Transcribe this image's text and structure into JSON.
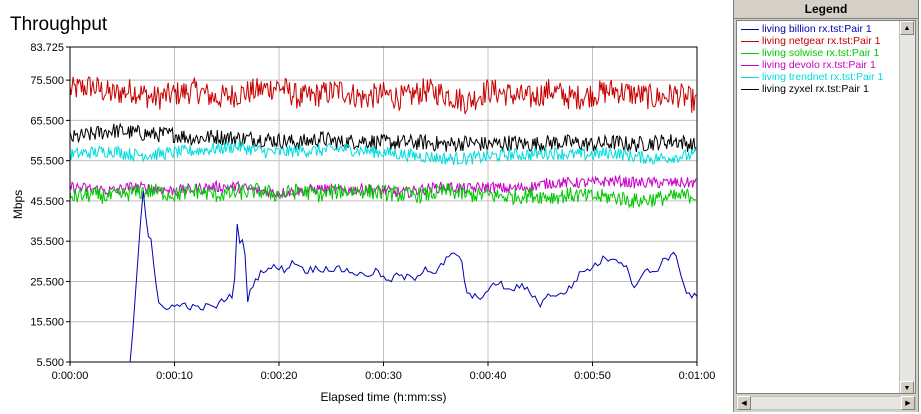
{
  "chart_data": {
    "type": "line",
    "title": "Throughput",
    "xlabel": "Elapsed time (h:mm:ss)",
    "ylabel": "Mbps",
    "xlim": [
      0,
      60
    ],
    "ylim": [
      5.5,
      83.725
    ],
    "grid": true,
    "legend_position": "right panel",
    "x_ticks": [
      0,
      10,
      20,
      30,
      40,
      50,
      60
    ],
    "x_tick_labels": [
      "0:00:00",
      "0:00:10",
      "0:00:20",
      "0:00:30",
      "0:00:40",
      "0:00:50",
      "0:01:00"
    ],
    "y_ticks": [
      5.5,
      15.5,
      25.5,
      35.5,
      45.5,
      55.5,
      65.5,
      75.5,
      83.725
    ],
    "y_tick_labels": [
      "5.500",
      "15.500",
      "25.500",
      "35.500",
      "45.500",
      "55.500",
      "65.500",
      "75.500",
      "83.725"
    ],
    "series": [
      {
        "name": "living billion rx.tst:Pair 1",
        "color": "#0000b4",
        "x": [
          0,
          5.8,
          6.8,
          7.0,
          7.2,
          7.5,
          7.8,
          8.1,
          8.5,
          9.0,
          9.5,
          10,
          11,
          12,
          13,
          14,
          15,
          15.7,
          16.0,
          16.3,
          16.6,
          17.0,
          17.5,
          18.5,
          19.5,
          20.5,
          21.5,
          22.5,
          23.5,
          25,
          26.5,
          28,
          29.5,
          30.5,
          31,
          32,
          33,
          34,
          35,
          36,
          37,
          37.5,
          38,
          39,
          40,
          41,
          42,
          43,
          44,
          45,
          46,
          47,
          48,
          49,
          50,
          51,
          52,
          53,
          54,
          55,
          56,
          57,
          58,
          59,
          60
        ],
        "y": [
          5.5,
          5.5,
          42,
          48,
          43,
          37,
          35.5,
          26,
          20,
          19,
          19.5,
          19.2,
          19.8,
          18.8,
          19.2,
          19.3,
          21.5,
          22.5,
          40.5,
          33,
          38.5,
          20.5,
          25,
          28.5,
          29,
          28.5,
          30.5,
          28.2,
          28.7,
          28.7,
          28.3,
          27,
          28,
          25,
          27,
          26.5,
          26.5,
          29,
          27.5,
          31,
          32.5,
          30,
          22,
          21.5,
          23,
          25.5,
          23,
          24.5,
          23,
          20,
          22.5,
          22,
          24.5,
          28,
          29,
          31,
          31.5,
          30,
          24.5,
          28,
          28,
          31.5,
          32,
          22.5,
          21.5
        ]
      },
      {
        "name": "living netgear rx.tst:Pair 1",
        "color": "#c80000",
        "x": [
          0,
          2,
          4,
          6,
          8,
          10,
          12,
          14,
          16,
          18,
          20,
          22,
          24,
          26,
          28,
          30,
          32,
          34,
          36,
          38,
          40,
          42,
          44,
          46,
          48,
          50,
          52,
          54,
          56,
          58,
          60
        ],
        "y": [
          73,
          74,
          72,
          73,
          71,
          72,
          73,
          71,
          72,
          73,
          74,
          71,
          72,
          73,
          71,
          72,
          71,
          73,
          72,
          70,
          73,
          72,
          71,
          73,
          71,
          72,
          73,
          72,
          71,
          72,
          70
        ]
      },
      {
        "name": "living solwise rx.tst:Pair 1",
        "color": "#00c800",
        "x": [
          0,
          2,
          4,
          6,
          8,
          10,
          12,
          14,
          16,
          18,
          20,
          22,
          24,
          26,
          28,
          30,
          32,
          34,
          36,
          38,
          40,
          42,
          44,
          46,
          48,
          50,
          52,
          54,
          56,
          58,
          60
        ],
        "y": [
          46.5,
          47,
          46.5,
          47.5,
          48,
          47,
          48,
          47,
          47.5,
          48,
          47,
          48,
          47,
          48,
          48,
          47.5,
          47,
          47,
          48,
          47,
          47,
          46.5,
          47,
          46.5,
          47,
          46.5,
          46.5,
          45.5,
          46,
          46.5,
          47
        ]
      },
      {
        "name": "living devolo rx.tst:Pair 1",
        "color": "#c800c8",
        "x": [
          0,
          2,
          4,
          6,
          8,
          10,
          12,
          14,
          16,
          18,
          20,
          22,
          24,
          26,
          28,
          30,
          32,
          34,
          36,
          38,
          40,
          42,
          44,
          46,
          48,
          50,
          52,
          54,
          56,
          58,
          60
        ],
        "y": [
          49,
          48.5,
          48,
          49,
          48.5,
          48,
          48.5,
          49,
          49,
          48,
          47.5,
          48,
          48.5,
          48,
          48.5,
          48,
          47.5,
          48.5,
          49,
          48.5,
          49,
          48.5,
          49,
          50,
          50,
          50,
          50.5,
          50,
          50,
          50,
          50
        ]
      },
      {
        "name": "living trendnet rx.tst:Pair 1",
        "color": "#00dcdc",
        "x": [
          0,
          2,
          4,
          6,
          8,
          10,
          12,
          14,
          16,
          18,
          20,
          22,
          24,
          26,
          28,
          30,
          32,
          34,
          36,
          38,
          40,
          42,
          44,
          46,
          48,
          50,
          52,
          54,
          56,
          58,
          60
        ],
        "y": [
          57,
          57.5,
          58,
          57,
          57,
          57.5,
          58,
          58.5,
          59,
          58,
          57.5,
          58,
          58,
          58.5,
          58,
          57.5,
          57,
          56.5,
          56,
          56,
          56.5,
          57,
          57,
          57.5,
          57,
          57,
          57.5,
          56.5,
          56,
          56.5,
          57
        ]
      },
      {
        "name": "living zyxel rx.tst:Pair 1",
        "color": "#000000",
        "x": [
          0,
          2,
          4,
          6,
          8,
          10,
          12,
          14,
          16,
          18,
          20,
          22,
          24,
          26,
          28,
          30,
          32,
          34,
          36,
          38,
          40,
          42,
          44,
          46,
          48,
          50,
          52,
          54,
          56,
          58,
          60
        ],
        "y": [
          61,
          62,
          63,
          62.5,
          62,
          62,
          61,
          61.5,
          61,
          61,
          60.5,
          60,
          61,
          60,
          60.5,
          60,
          60,
          60,
          59.5,
          60,
          59.5,
          60,
          59.5,
          60,
          60,
          59.5,
          60,
          59.5,
          60,
          60.5,
          59
        ]
      }
    ]
  },
  "legend": {
    "title": "Legend"
  },
  "icons": {
    "scroll_up": "scroll-up-arrow-icon",
    "scroll_down": "scroll-down-arrow-icon",
    "scroll_left": "scroll-left-arrow-icon",
    "scroll_right": "scroll-right-arrow-icon"
  }
}
